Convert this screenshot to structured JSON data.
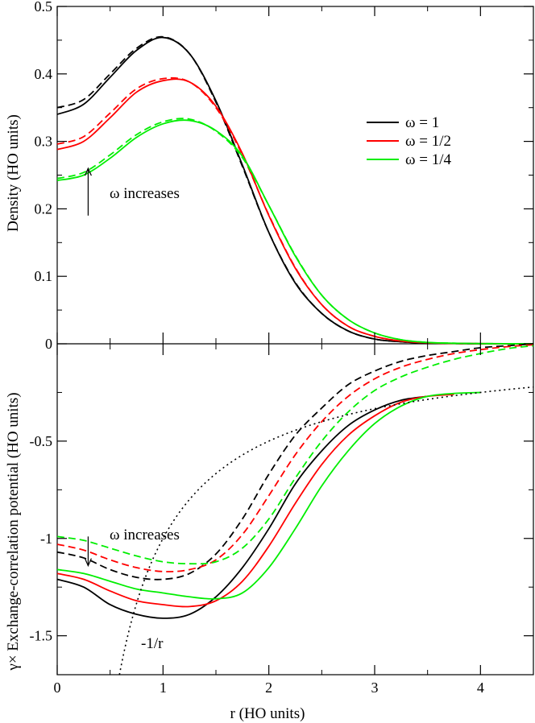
{
  "chart_data": {
    "type": "line",
    "x_label": "r (HO units)",
    "x_range": [
      0,
      4.5
    ],
    "x_ticks": [
      {
        "value": 0,
        "label": "0"
      },
      {
        "value": 1,
        "label": "1"
      },
      {
        "value": 2,
        "label": "2"
      },
      {
        "value": 3,
        "label": "3"
      },
      {
        "value": 4,
        "label": "4"
      }
    ],
    "x_minor_ticks": [
      0.5,
      1.5,
      2.5,
      3.5
    ],
    "colors": {
      "omega_1": "#000000",
      "omega_1_2": "#ff0000",
      "omega_1_4": "#00ee00",
      "coulomb": "#000000"
    },
    "panels": [
      {
        "id": "density",
        "y_label": "Density (HO units)",
        "y_range": [
          0,
          0.5
        ],
        "y_ticks": [
          {
            "value": 0,
            "label": "0"
          },
          {
            "value": 0.1,
            "label": "0.1"
          },
          {
            "value": 0.2,
            "label": "0.2"
          },
          {
            "value": 0.3,
            "label": "0.3"
          },
          {
            "value": 0.4,
            "label": "0.4"
          },
          {
            "value": 0.5,
            "label": "0.5"
          }
        ],
        "annotation": {
          "text": "ω increases",
          "arrow": "up",
          "arrow_x": 0.3,
          "arrow_y": [
            0.19,
            0.26
          ]
        },
        "series": [
          {
            "name": "ω = 1",
            "color": "#000000",
            "dash": "solid",
            "x": [
              0,
              0.25,
              0.5,
              0.75,
              1.0,
              1.25,
              1.5,
              1.75,
              2.0,
              2.25,
              2.5,
              2.75,
              3.0,
              3.25,
              3.5,
              3.75,
              4.0,
              4.5
            ],
            "y": [
              0.34,
              0.355,
              0.395,
              0.435,
              0.454,
              0.43,
              0.36,
              0.265,
              0.165,
              0.09,
              0.045,
              0.019,
              0.007,
              0.003,
              0.001,
              0.0004,
              0.0001,
              0
            ]
          },
          {
            "name": "",
            "color": "#000000",
            "dash": "dashed",
            "x": [
              0,
              0.25,
              0.5,
              0.75,
              1.0,
              1.25,
              1.5,
              1.75,
              2.0,
              2.25,
              2.5,
              2.75,
              3.0,
              3.25,
              3.5,
              3.75,
              4.0,
              4.5
            ],
            "y": [
              0.35,
              0.362,
              0.4,
              0.438,
              0.455,
              0.43,
              0.358,
              0.263,
              0.165,
              0.091,
              0.045,
              0.019,
              0.007,
              0.003,
              0.001,
              0.0004,
              0.0001,
              0
            ]
          },
          {
            "name": "ω = 1/2",
            "color": "#ff0000",
            "dash": "solid",
            "x": [
              0,
              0.25,
              0.5,
              0.75,
              1.0,
              1.25,
              1.5,
              1.75,
              2.0,
              2.25,
              2.5,
              2.75,
              3.0,
              3.25,
              3.5,
              3.75,
              4.0,
              4.5
            ],
            "y": [
              0.288,
              0.3,
              0.335,
              0.373,
              0.39,
              0.388,
              0.352,
              0.282,
              0.19,
              0.112,
              0.058,
              0.026,
              0.011,
              0.004,
              0.0015,
              0.0005,
              0.0002,
              0
            ]
          },
          {
            "name": "",
            "color": "#ff0000",
            "dash": "dashed",
            "x": [
              0,
              0.25,
              0.5,
              0.75,
              1.0,
              1.25,
              1.5,
              1.75,
              2.0,
              2.25,
              2.5,
              2.75,
              3.0,
              3.25,
              3.5,
              3.75,
              4.0,
              4.5
            ],
            "y": [
              0.296,
              0.307,
              0.342,
              0.378,
              0.393,
              0.388,
              0.35,
              0.28,
              0.191,
              0.113,
              0.058,
              0.026,
              0.011,
              0.004,
              0.0015,
              0.0005,
              0.0002,
              0
            ]
          },
          {
            "name": "ω = 1/4",
            "color": "#00ee00",
            "dash": "solid",
            "x": [
              0,
              0.25,
              0.5,
              0.75,
              1.0,
              1.25,
              1.5,
              1.75,
              2.0,
              2.25,
              2.5,
              2.75,
              3.0,
              3.25,
              3.5,
              3.75,
              4.0,
              4.5
            ],
            "y": [
              0.242,
              0.25,
              0.275,
              0.306,
              0.326,
              0.331,
              0.316,
              0.278,
              0.205,
              0.13,
              0.072,
              0.036,
              0.016,
              0.006,
              0.002,
              0.0008,
              0.0003,
              0
            ]
          },
          {
            "name": "",
            "color": "#00ee00",
            "dash": "dashed",
            "x": [
              0,
              0.25,
              0.5,
              0.75,
              1.0,
              1.25,
              1.5,
              1.75,
              2.0,
              2.25,
              2.5,
              2.75,
              3.0,
              3.25,
              3.5,
              3.75,
              4.0,
              4.5
            ],
            "y": [
              0.245,
              0.254,
              0.28,
              0.31,
              0.329,
              0.333,
              0.315,
              0.276,
              0.205,
              0.131,
              0.072,
              0.036,
              0.016,
              0.006,
              0.002,
              0.0008,
              0.0003,
              0
            ]
          }
        ]
      },
      {
        "id": "potential",
        "y_label": "γ× Exchange-correlation potential (HO units)",
        "y_range": [
          -1.7,
          0
        ],
        "y_ticks": [
          {
            "value": -0.5,
            "label": "-0.5"
          },
          {
            "value": -1,
            "label": "-1"
          },
          {
            "value": -1.5,
            "label": "-1.5"
          }
        ],
        "annotation": {
          "text": "ω increases",
          "arrow": "down",
          "arrow_x": 0.3,
          "arrow_y": [
            -0.99,
            -1.14
          ]
        },
        "coulomb_label": "-1/r",
        "series": [
          {
            "name": "",
            "color": "#000000",
            "dash": "solid",
            "x": [
              0,
              0.25,
              0.5,
              0.75,
              1.0,
              1.25,
              1.5,
              1.75,
              2.0,
              2.25,
              2.5,
              2.75,
              3.0,
              3.25,
              3.5
            ],
            "y": [
              -1.21,
              -1.25,
              -1.34,
              -1.39,
              -1.41,
              -1.39,
              -1.3,
              -1.15,
              -0.95,
              -0.72,
              -0.55,
              -0.42,
              -0.34,
              -0.29,
              -0.27
            ]
          },
          {
            "name": "",
            "color": "#000000",
            "dash": "dashed",
            "x": [
              0,
              0.25,
              0.5,
              0.75,
              1.0,
              1.25,
              1.5,
              1.75,
              2.0,
              2.25,
              2.5,
              2.75,
              3.0,
              3.25,
              3.5,
              3.75,
              4.0,
              4.25,
              4.5
            ],
            "y": [
              -1.07,
              -1.1,
              -1.16,
              -1.2,
              -1.21,
              -1.18,
              -1.08,
              -0.9,
              -0.67,
              -0.47,
              -0.33,
              -0.21,
              -0.14,
              -0.09,
              -0.06,
              -0.04,
              -0.02,
              -0.01,
              0.0
            ]
          },
          {
            "name": "",
            "color": "#ff0000",
            "dash": "solid",
            "x": [
              0,
              0.25,
              0.5,
              0.75,
              1.0,
              1.25,
              1.5,
              1.75,
              2.0,
              2.25,
              2.5,
              2.75,
              3.0,
              3.25,
              3.5,
              3.75
            ],
            "y": [
              -1.18,
              -1.21,
              -1.27,
              -1.32,
              -1.34,
              -1.35,
              -1.32,
              -1.22,
              -1.04,
              -0.82,
              -0.62,
              -0.47,
              -0.37,
              -0.3,
              -0.27,
              -0.26
            ]
          },
          {
            "name": "",
            "color": "#ff0000",
            "dash": "dashed",
            "x": [
              0,
              0.25,
              0.5,
              0.75,
              1.0,
              1.25,
              1.5,
              1.75,
              2.0,
              2.25,
              2.5,
              2.75,
              3.0,
              3.25,
              3.5,
              3.75,
              4.0,
              4.25,
              4.5
            ],
            "y": [
              -1.03,
              -1.06,
              -1.11,
              -1.15,
              -1.17,
              -1.16,
              -1.11,
              -0.98,
              -0.78,
              -0.57,
              -0.4,
              -0.27,
              -0.18,
              -0.12,
              -0.08,
              -0.05,
              -0.03,
              -0.015,
              -0.005
            ]
          },
          {
            "name": "",
            "color": "#00ee00",
            "dash": "solid",
            "x": [
              0,
              0.25,
              0.5,
              0.75,
              1.0,
              1.25,
              1.5,
              1.75,
              2.0,
              2.25,
              2.5,
              2.75,
              3.0,
              3.25,
              3.5,
              3.75,
              4.0
            ],
            "y": [
              -1.16,
              -1.18,
              -1.22,
              -1.26,
              -1.28,
              -1.3,
              -1.31,
              -1.28,
              -1.15,
              -0.95,
              -0.73,
              -0.55,
              -0.41,
              -0.32,
              -0.27,
              -0.255,
              -0.25
            ]
          },
          {
            "name": "",
            "color": "#00ee00",
            "dash": "dashed",
            "x": [
              0,
              0.25,
              0.5,
              0.75,
              1.0,
              1.25,
              1.5,
              1.75,
              2.0,
              2.25,
              2.5,
              2.75,
              3.0,
              3.25,
              3.5,
              3.75,
              4.0,
              4.25,
              4.5
            ],
            "y": [
              -0.99,
              -1.01,
              -1.05,
              -1.09,
              -1.12,
              -1.13,
              -1.12,
              -1.05,
              -0.9,
              -0.69,
              -0.5,
              -0.35,
              -0.24,
              -0.17,
              -0.12,
              -0.08,
              -0.05,
              -0.025,
              -0.01
            ]
          }
        ],
        "coulomb_series": {
          "name": "",
          "color": "#000000",
          "dash": "dotted",
          "x_start": 0.5882,
          "x_end": 4.5
        }
      }
    ]
  }
}
